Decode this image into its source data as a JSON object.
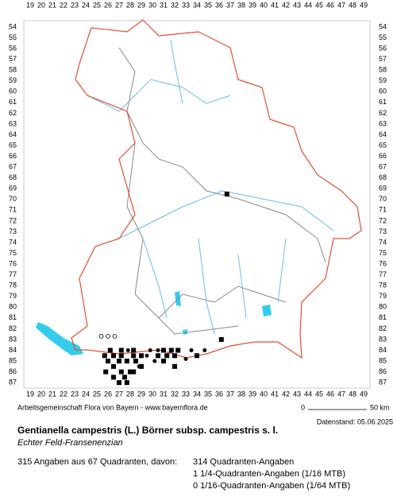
{
  "map": {
    "columns": [
      19,
      20,
      21,
      22,
      23,
      24,
      25,
      26,
      27,
      28,
      29,
      30,
      31,
      32,
      33,
      34,
      35,
      36,
      37,
      38,
      39,
      40,
      41,
      42,
      43,
      44,
      45,
      46,
      47,
      48,
      49
    ],
    "rows": [
      54,
      55,
      56,
      57,
      58,
      59,
      60,
      61,
      62,
      63,
      64,
      65,
      66,
      67,
      68,
      69,
      70,
      71,
      72,
      73,
      74,
      75,
      76,
      77,
      78,
      79,
      80,
      81,
      82,
      83,
      84,
      85,
      86,
      87
    ],
    "squares": [
      [
        36.7,
        69.5
      ],
      [
        36.2,
        83
      ],
      [
        26.2,
        84
      ],
      [
        27.2,
        84
      ],
      [
        28.3,
        84
      ],
      [
        31,
        84
      ],
      [
        31.7,
        84
      ],
      [
        32.3,
        84
      ],
      [
        25.7,
        84.5
      ],
      [
        26.5,
        84.5
      ],
      [
        27.2,
        84.5
      ],
      [
        28.3,
        84.5
      ],
      [
        29,
        84.5
      ],
      [
        30.5,
        84.5
      ],
      [
        31.3,
        84.5
      ],
      [
        32,
        84.5
      ],
      [
        34,
        84.5
      ],
      [
        26,
        85
      ],
      [
        27,
        85
      ],
      [
        27.7,
        85
      ],
      [
        28.5,
        85
      ],
      [
        31,
        85
      ],
      [
        32,
        85.5
      ],
      [
        26.5,
        85.5
      ],
      [
        27.2,
        86
      ],
      [
        28,
        86
      ],
      [
        26.5,
        86.5
      ],
      [
        27.5,
        86.5
      ],
      [
        28.3,
        86
      ],
      [
        27,
        87
      ],
      [
        27.7,
        87
      ],
      [
        25.8,
        86
      ],
      [
        29,
        85.5
      ]
    ],
    "dots": [
      [
        27.8,
        84
      ],
      [
        29.8,
        84
      ],
      [
        30.5,
        84
      ],
      [
        33.5,
        84
      ],
      [
        34.7,
        84
      ],
      [
        28.8,
        85.5
      ],
      [
        30.2,
        85
      ],
      [
        29.5,
        84.5
      ],
      [
        33,
        84.8
      ]
    ],
    "open_circles": [
      [
        25.4,
        82.7
      ],
      [
        26,
        82.7
      ],
      [
        26.6,
        82.7
      ]
    ]
  },
  "footer": {
    "credit": "Arbeitsgemeinschaft Flora von Bayern - www.bayernflora.de",
    "scale_start": "0",
    "scale_end": "50 km",
    "date": "Datenstand: 05.06.2025"
  },
  "species": {
    "title": "Gentianella campestris (L.) Börner subsp. campestris s. l.",
    "subtitle": "Echter Feld-Fransenenzian"
  },
  "stats": {
    "summary": "315 Angaben aus 67 Quadranten, davon:",
    "lines": [
      "314 Quadranten-Angaben",
      "1 1/4-Quadranten-Angaben (1/16 MTB)",
      "0 1/16-Quadranten-Angaben (1/64 MTB)"
    ]
  }
}
